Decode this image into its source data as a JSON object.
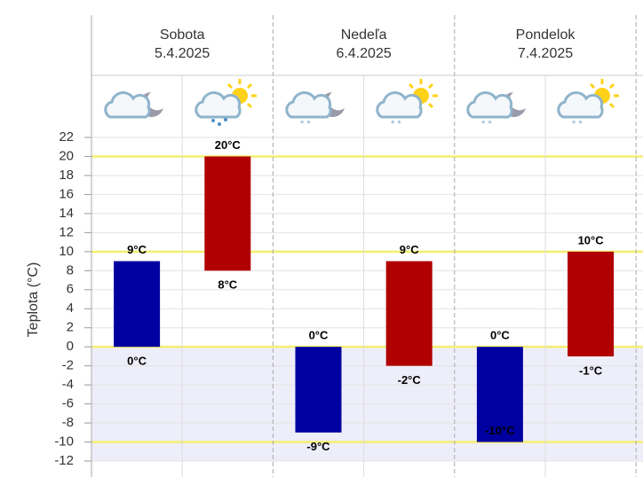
{
  "chart_data": {
    "type": "range-bar",
    "y_label": "Teplota (°C)",
    "days": [
      {
        "name": "Sobota",
        "date": "5.4.2025"
      },
      {
        "name": "Nedeľa",
        "date": "6.4.2025"
      },
      {
        "name": "Pondelok",
        "date": "7.4.2025"
      }
    ],
    "lows": [
      0,
      8,
      -9,
      -2,
      -10,
      -1
    ],
    "highs": [
      9,
      20,
      0,
      9,
      0,
      10
    ],
    "low_labels": [
      "0°C",
      "8°C",
      "-9°C",
      "-2°C",
      "-10°C",
      "-1°C"
    ],
    "high_labels": [
      "9°C",
      "20°C",
      "0°C",
      "9°C",
      "0°C",
      "10°C"
    ],
    "colors": [
      "#0000a0",
      "#b00000",
      "#0000a0",
      "#b00000",
      "#0000a0",
      "#b00000"
    ],
    "ylim": [
      -12,
      22
    ],
    "yticks": [
      -12,
      -10,
      -8,
      -6,
      -4,
      -2,
      0,
      2,
      4,
      6,
      8,
      10,
      12,
      14,
      16,
      18,
      20,
      22
    ],
    "highlight_lines": [
      -10,
      0,
      10,
      20
    ],
    "grid": true
  }
}
